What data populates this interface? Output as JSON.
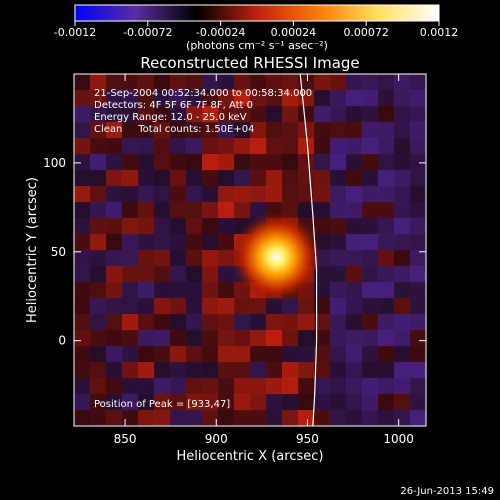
{
  "chart_data": {
    "type": "heatmap",
    "title": "Reconstructed RHESSI Image",
    "xlabel": "Heliocentric X (arcsec)",
    "ylabel": "Heliocentric Y (arcsec)",
    "xlim": [
      822,
      1015
    ],
    "ylim": [
      -48,
      150
    ],
    "x_ticks": [
      850,
      900,
      950,
      1000
    ],
    "y_ticks": [
      0,
      50,
      100
    ],
    "colorbar": {
      "min": -0.0012,
      "max": 0.0012,
      "ticks": [
        "-0.0012",
        "-0.00072",
        "-0.00024",
        "0.00024",
        "0.00072",
        "0.0012"
      ],
      "unit_label": "(photons cm⁻² s⁻¹ asec⁻²)",
      "colors": [
        "#0000ff",
        "#5a2da0",
        "#000000",
        "#c02010",
        "#ff7a00",
        "#ffe060",
        "#ffffff"
      ]
    },
    "annotations": {
      "time": "21-Sep-2004 00:52:34.000 to 00:58:34.000",
      "detectors": "Detectors: 4F 5F 6F 7F 8F, Att 0",
      "energy": "Energy Range: 12.0 - 25.0 keV",
      "clean": "Clean     Total counts: 1.50E+04",
      "peak": "Position of Peak = [933,47]"
    },
    "peak": {
      "x": 933,
      "y": 47,
      "value": 0.0012
    },
    "limb_arc": [
      [
        946,
        150
      ],
      [
        950,
        110
      ],
      [
        953,
        70
      ],
      [
        955,
        40
      ],
      [
        955,
        0
      ],
      [
        954,
        -30
      ],
      [
        953,
        -48
      ]
    ]
  },
  "footer_date": "26-Jun-2013 15:49"
}
